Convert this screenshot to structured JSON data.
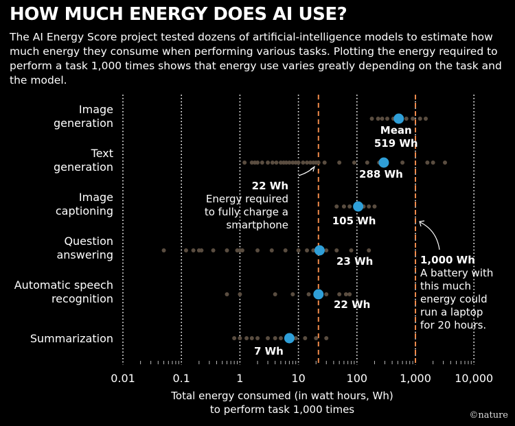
{
  "header": {
    "title": "HOW MUCH ENERGY DOES AI USE?",
    "subtitle": "The AI Energy Score project tested dozens of artificial-intelligence models to estimate how much energy they consume when performing various tasks. Plotting the energy required to perform a task 1,000 times shows that energy use varies greatly depending on the task and the model."
  },
  "brand": "©nature",
  "chart_data": {
    "type": "scatter",
    "x_scale": "log",
    "xlim": [
      0.01,
      10000
    ],
    "x_ticks": [
      {
        "value": 0.01,
        "label": "0.01"
      },
      {
        "value": 0.1,
        "label": "0.1"
      },
      {
        "value": 1,
        "label": "1"
      },
      {
        "value": 10,
        "label": "10"
      },
      {
        "value": 100,
        "label": "100"
      },
      {
        "value": 1000,
        "label": "1,000"
      },
      {
        "value": 10000,
        "label": "10,000"
      }
    ],
    "xlabel": [
      "Total energy consumed (in watt hours, Wh)",
      "to perform task 1,000 times"
    ],
    "categories": [
      {
        "label": [
          "Image",
          "generation"
        ],
        "mean": 519,
        "mean_label": [
          "Mean",
          "519 Wh"
        ],
        "models": [
          180,
          230,
          270,
          330,
          420,
          560,
          700,
          900,
          1200,
          1500
        ]
      },
      {
        "label": [
          "Text",
          "generation"
        ],
        "mean": 288,
        "mean_label": [
          "288 Wh"
        ],
        "models": [
          1.2,
          1.6,
          1.8,
          2.0,
          2.4,
          3.0,
          3.6,
          4.2,
          5,
          5.6,
          6.2,
          7,
          8,
          9,
          10,
          12,
          14,
          16,
          18,
          20,
          22,
          28,
          50,
          90,
          150,
          240,
          600,
          1600,
          2000,
          3200
        ]
      },
      {
        "label": [
          "Image",
          "captioning"
        ],
        "mean": 105,
        "mean_label": [
          "105 Wh"
        ],
        "models": [
          45,
          60,
          75,
          95,
          130,
          160,
          200
        ]
      },
      {
        "label": [
          "Question",
          "answering"
        ],
        "mean": 23,
        "mean_label": [
          "23 Wh"
        ],
        "models": [
          0.05,
          0.12,
          0.16,
          0.2,
          0.22,
          0.35,
          0.6,
          0.9,
          1.0,
          1.1,
          2.0,
          3.5,
          6,
          10,
          14,
          18,
          30,
          45,
          80,
          160
        ]
      },
      {
        "label": [
          "Automatic speech",
          "recognition"
        ],
        "mean": 22,
        "mean_label": [
          "22 Wh"
        ],
        "models": [
          0.6,
          1.0,
          4.0,
          8,
          15,
          30,
          50,
          65,
          75
        ]
      },
      {
        "label": [
          "Summarization"
        ],
        "mean": 7,
        "mean_label": [
          "7 Wh"
        ],
        "models": [
          0.8,
          1.0,
          1.3,
          1.6,
          2.0,
          3.0,
          4.0,
          5.0,
          9,
          13,
          20,
          30
        ]
      }
    ],
    "reference_lines": [
      {
        "value": 22,
        "label": [
          "22 Wh",
          "Energy required",
          "to fully charge a",
          "smartphone"
        ]
      },
      {
        "value": 1000,
        "label": [
          "1,000 Wh",
          "A battery with",
          "this much",
          "energy could",
          "run a laptop",
          "for 20 hours."
        ]
      }
    ],
    "colors": {
      "mean_dot": "#2f9fd8",
      "model_dot": "#5a4d40",
      "reference_line": "#f08a4b",
      "gridline": "#ffffff"
    }
  }
}
